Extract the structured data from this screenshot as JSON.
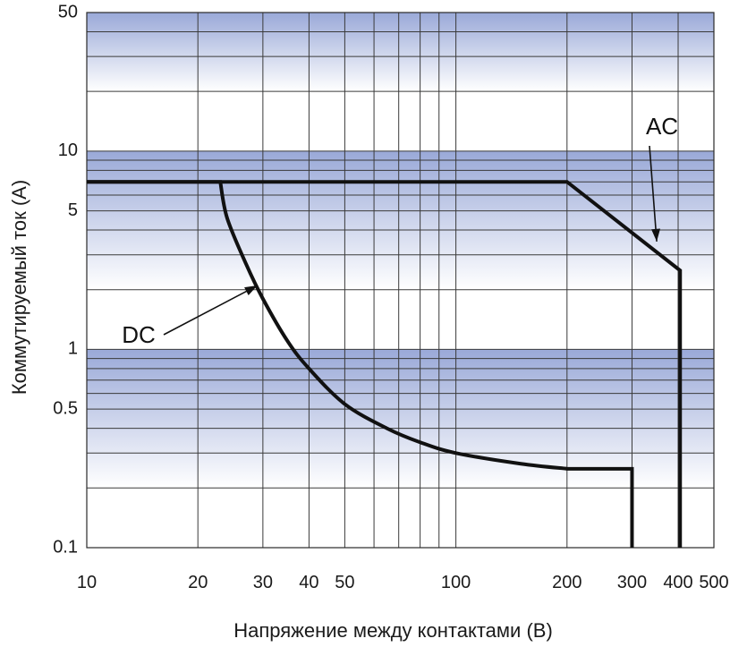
{
  "chart_data": {
    "type": "line",
    "title": "",
    "xlabel": "Напряжение между контактами (В)",
    "ylabel": "Коммутируемый ток (А)",
    "x_scale": "log",
    "y_scale": "log",
    "xlim": [
      10,
      500
    ],
    "ylim": [
      0.1,
      50
    ],
    "x_ticks": [
      10,
      20,
      30,
      40,
      50,
      100,
      200,
      300,
      400,
      500
    ],
    "x_tick_labels": [
      "10",
      "20",
      "30",
      "40",
      "50",
      "100",
      "200",
      "300",
      "400",
      "500"
    ],
    "y_ticks": [
      0.1,
      0.5,
      1,
      5,
      10,
      50
    ],
    "y_tick_labels": [
      "0.1",
      "0.5",
      "1",
      "5",
      "10",
      "50"
    ],
    "grid": true,
    "series": [
      {
        "name": "AC",
        "points": [
          [
            10,
            7
          ],
          [
            200,
            7
          ],
          [
            405,
            2.5
          ],
          [
            405,
            0.1
          ]
        ]
      },
      {
        "name": "DC",
        "points": [
          [
            10,
            7
          ],
          [
            23,
            7
          ],
          [
            24,
            4.6
          ],
          [
            27,
            2.7
          ],
          [
            30,
            1.8
          ],
          [
            35,
            1.1
          ],
          [
            40,
            0.8
          ],
          [
            50,
            0.53
          ],
          [
            65,
            0.4
          ],
          [
            80,
            0.34
          ],
          [
            100,
            0.3
          ],
          [
            150,
            0.265
          ],
          [
            200,
            0.25
          ],
          [
            300,
            0.25
          ],
          [
            300,
            0.1
          ]
        ]
      }
    ],
    "annotations": [
      {
        "text": "AC",
        "series": "AC",
        "points_at": [
          350,
          3.5
        ]
      },
      {
        "text": "DC",
        "series": "DC",
        "points_at": [
          29,
          2.1
        ]
      }
    ]
  }
}
